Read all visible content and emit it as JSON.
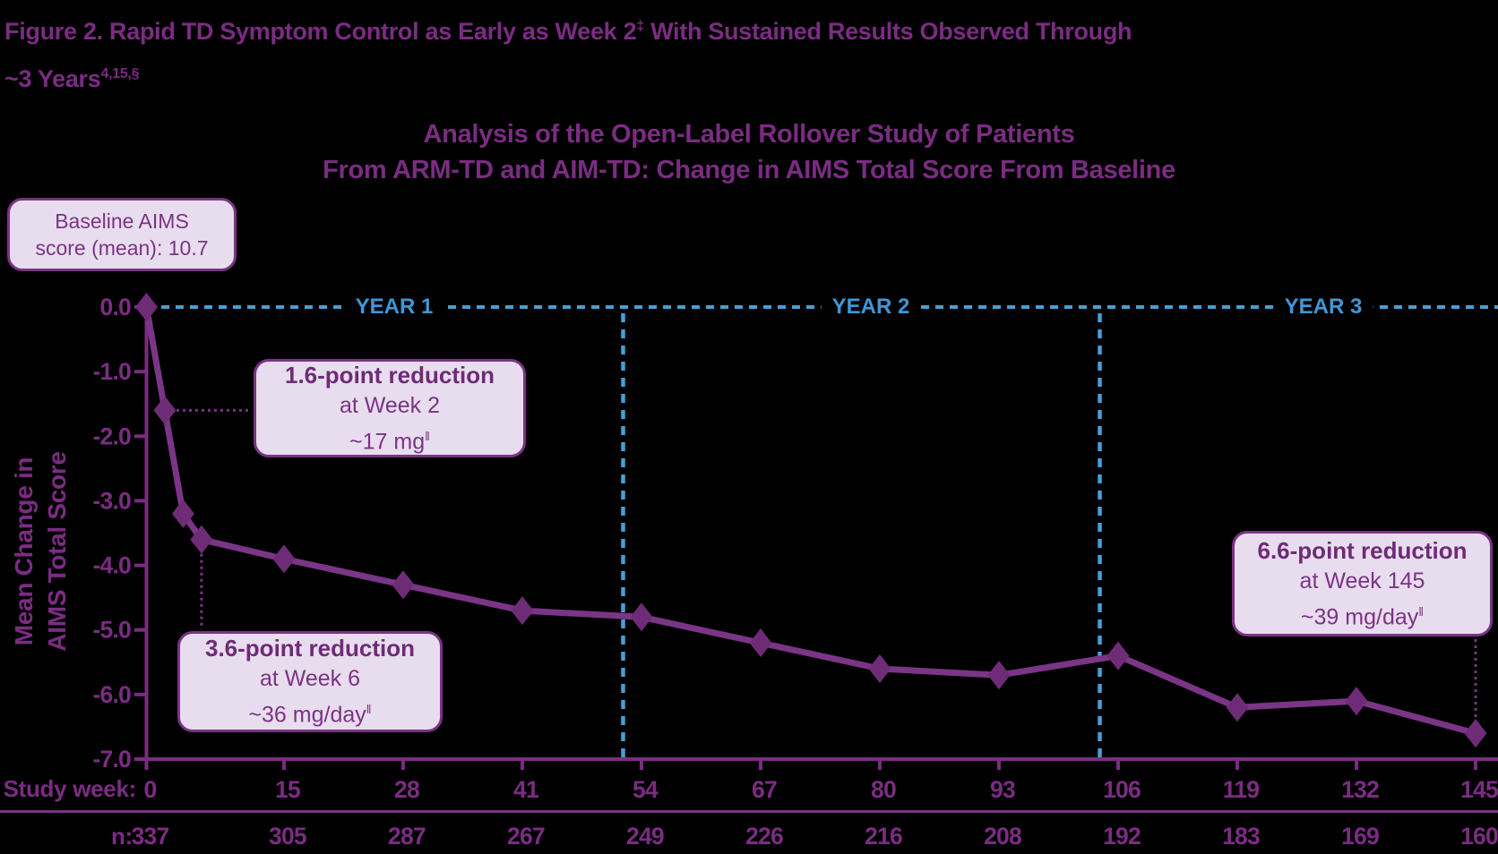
{
  "figure_title": {
    "line1_text": "Figure 2. Rapid TD Symptom Control as Early as Week 2",
    "line1_sup": "‡",
    "line1_rest": " With Sustained Results Observed Through",
    "line2_text": "~3 Years",
    "line2_sup": "4,15,§"
  },
  "chart_data": {
    "type": "line",
    "title_line1": "Analysis of the Open-Label Rollover Study of Patients",
    "title_line2": "From ARM-TD and AIM-TD: Change in AIMS Total Score From Baseline",
    "ylabel_line1": "Mean Change in",
    "ylabel_line2": "AIMS Total Score",
    "x_axis_label": "Study week:",
    "n_row_label": "n:",
    "series": [
      {
        "name": "Mean change in AIMS total score",
        "x_weeks": [
          0,
          2,
          4,
          6,
          15,
          28,
          41,
          54,
          67,
          80,
          93,
          106,
          119,
          132,
          145
        ],
        "values": [
          0.0,
          -1.6,
          -3.2,
          -3.6,
          -3.9,
          -4.3,
          -4.7,
          -4.8,
          -5.2,
          -5.6,
          -5.7,
          -5.4,
          -6.2,
          -6.1,
          -6.6
        ]
      }
    ],
    "x_ticks": [
      0,
      15,
      28,
      41,
      54,
      67,
      80,
      93,
      106,
      119,
      132,
      145
    ],
    "n_values": [
      337,
      305,
      287,
      267,
      249,
      226,
      216,
      208,
      192,
      183,
      169,
      160
    ],
    "y_tick_labels": [
      "0.0",
      "-1.0",
      "-2.0",
      "-3.0",
      "-4.0",
      "-5.0",
      "-6.0",
      "-7.0"
    ],
    "ylim": [
      -7,
      0
    ],
    "xlim": [
      0,
      145
    ],
    "grid": "off",
    "legend": "none",
    "year_bands": [
      {
        "label": "YEAR 1",
        "start_week": 0,
        "end_week": 52
      },
      {
        "label": "YEAR 2",
        "start_week": 52,
        "end_week": 104
      },
      {
        "label": "YEAR 3",
        "start_week": 104,
        "end_week": 145
      }
    ]
  },
  "annotations": {
    "baseline_box": {
      "line1": "Baseline AIMS",
      "line2": "score (mean): 10.7"
    },
    "callouts": [
      {
        "heading": "1.6-point reduction",
        "detail": "at Week 2",
        "dose": "~17 mg",
        "dose_sup": "‖",
        "week": 2
      },
      {
        "heading": "3.6-point reduction",
        "detail": "at Week 6",
        "dose": "~36 mg/day",
        "dose_sup": "‖",
        "week": 6
      },
      {
        "heading": "6.6-point reduction",
        "detail": "at Week 145",
        "dose": "~39 mg/day",
        "dose_sup": "‖",
        "week": 145
      }
    ]
  },
  "colors": {
    "purple_text": "#7B2C82",
    "purple_line": "#7A3586",
    "purple_diamond": "#6E2C77",
    "box_fill": "#E8DDEE",
    "box_border": "#7A3484",
    "blue": "#45A0D6",
    "background": "#000000"
  }
}
